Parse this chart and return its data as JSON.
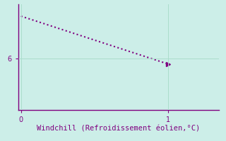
{
  "x_data": [
    0,
    1
  ],
  "y_data": [
    8.5,
    5.7
  ],
  "line_color": "#800080",
  "line_style": "dotted",
  "line_width": 1.5,
  "marker": ">",
  "marker_size": 4,
  "background_color": "#cceee8",
  "xlabel": "Windchill (Refroidissement éolien,°C)",
  "xlabel_fontsize": 7.5,
  "xlabel_color": "#800080",
  "xlim": [
    -0.02,
    1.35
  ],
  "ylim": [
    3.0,
    9.2
  ],
  "xticks": [
    0,
    1
  ],
  "yticks": [
    6
  ],
  "tick_fontsize": 7,
  "tick_color": "#800080",
  "grid_color": "#aaddcc",
  "grid_linewidth": 0.7,
  "spine_color": "#800080",
  "spine_linewidth": 1.0,
  "figsize": [
    3.2,
    2.0
  ],
  "dpi": 100
}
